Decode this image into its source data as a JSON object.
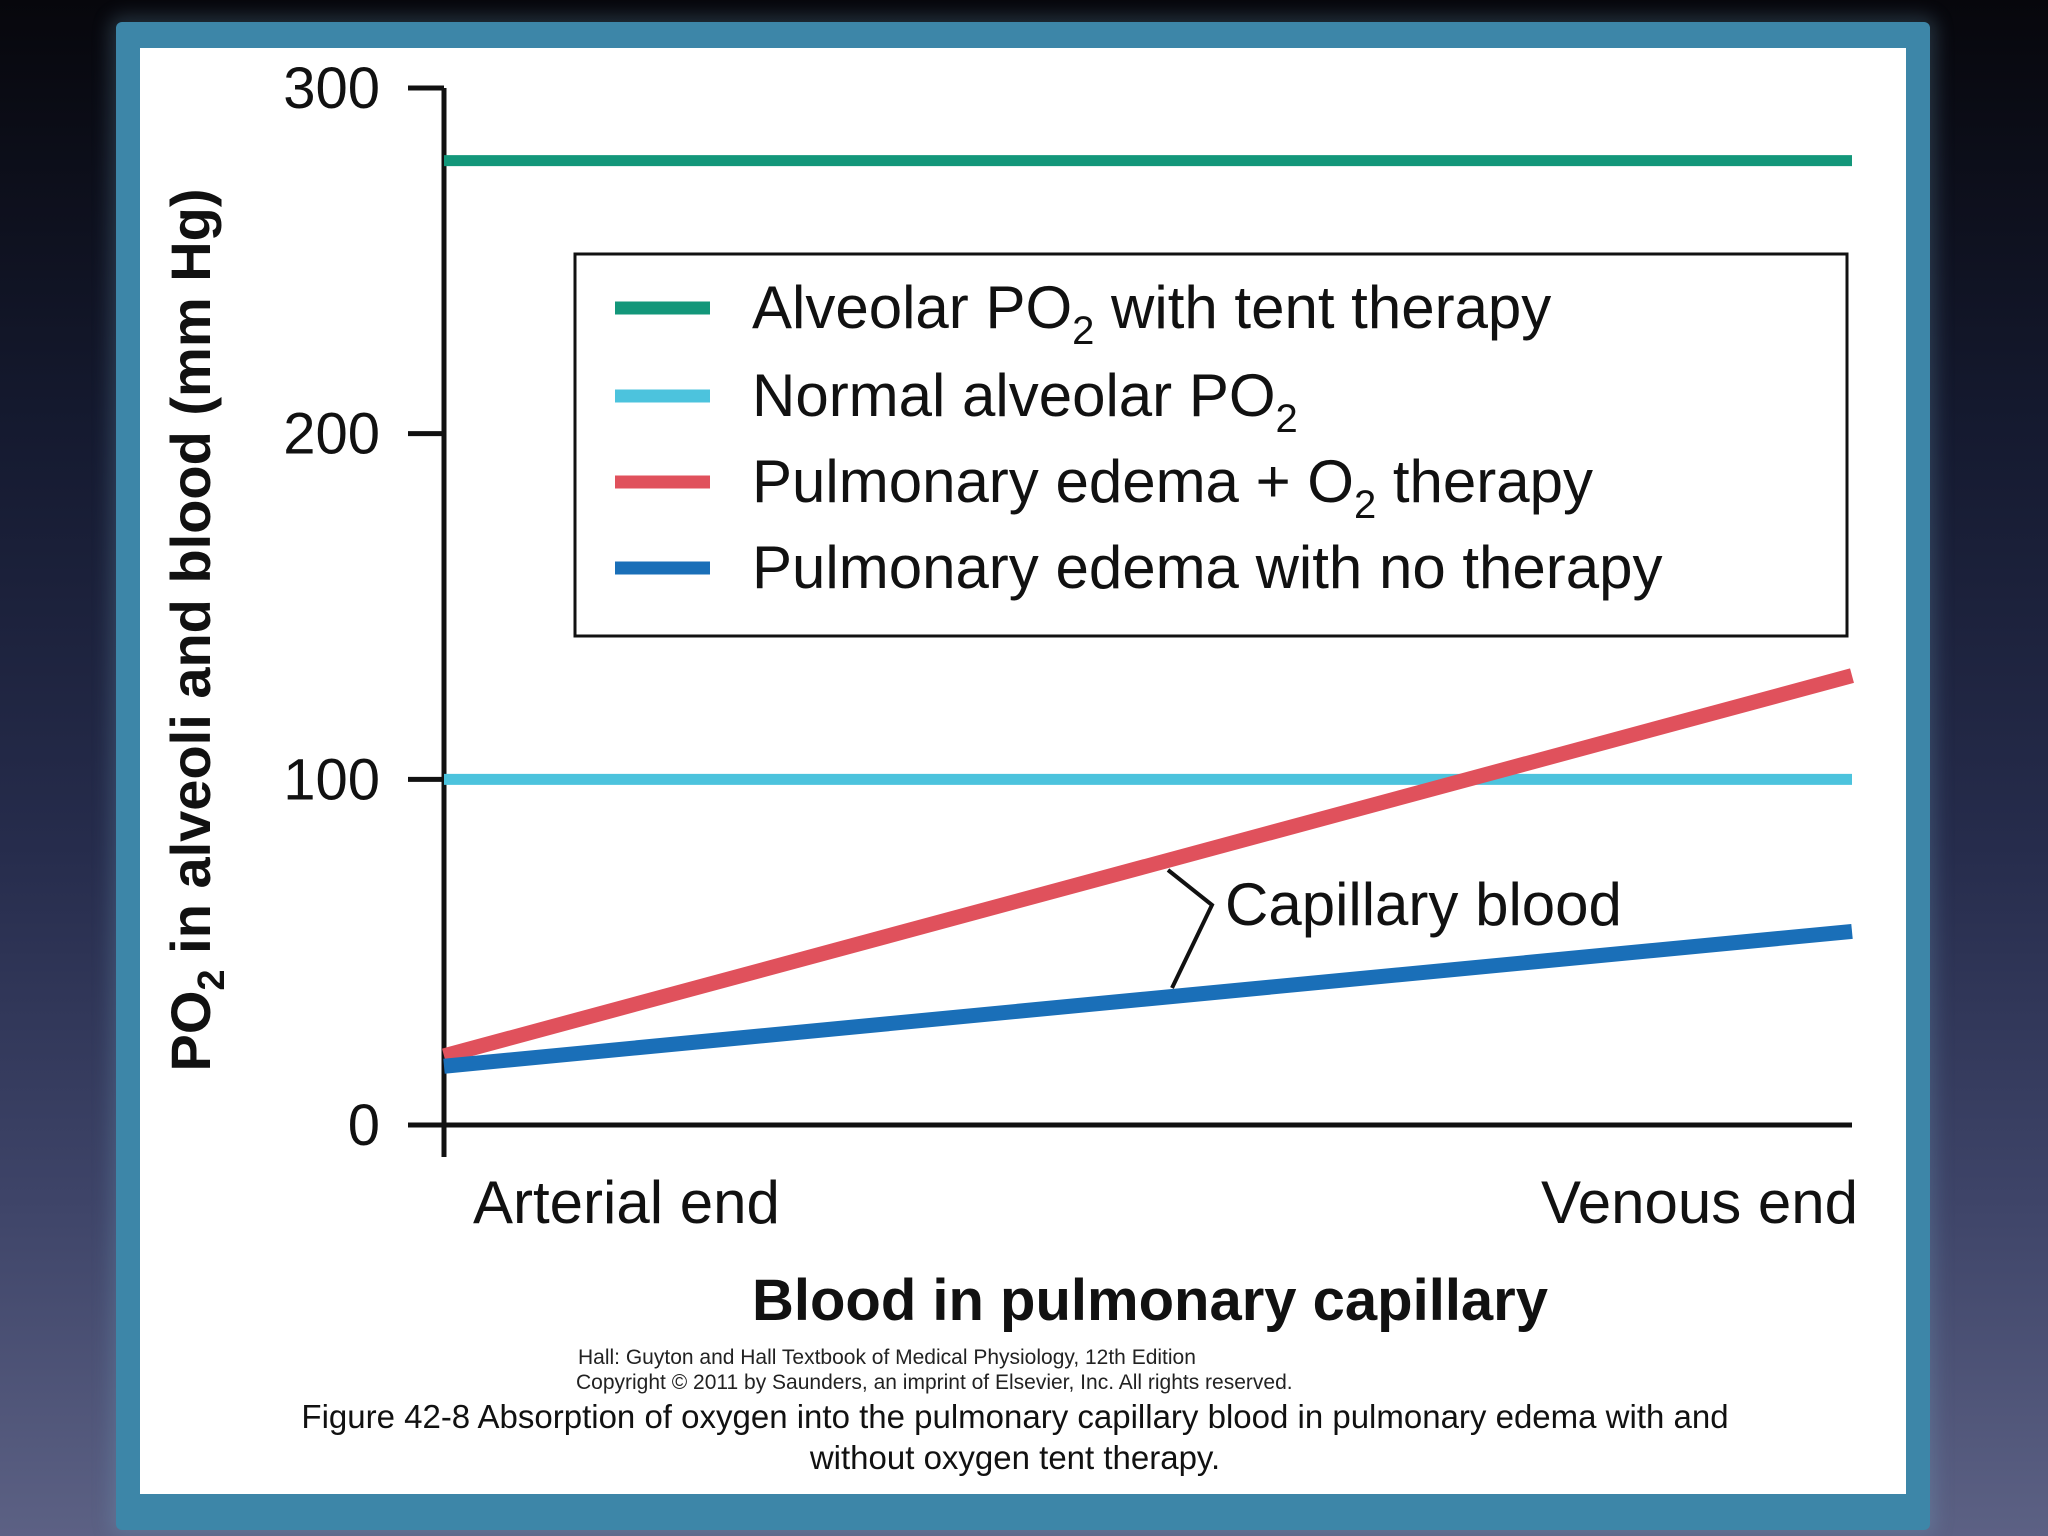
{
  "chart_data": {
    "type": "line",
    "ylabel_main": "PO",
    "ylabel_sub": "2",
    "ylabel_rest": " in alveoli and blood (mm Hg)",
    "xlabel": "Blood in pulmonary capillary",
    "x_start_label": "Arterial end",
    "x_end_label": "Venous end",
    "ylim": [
      0,
      300
    ],
    "yticks": [
      0,
      100,
      200,
      300
    ],
    "x": [
      0,
      1
    ],
    "legend_position": "upper-right",
    "series": [
      {
        "name": "Alveolar PO2 with tent therapy",
        "name_main": "Alveolar PO",
        "name_sub": "2",
        "name_rest": " with tent therapy",
        "values": [
          279,
          279
        ],
        "color": "#13977a"
      },
      {
        "name": "Normal alveolar PO2",
        "name_main": "Normal alveolar PO",
        "name_sub": "2",
        "name_rest": "",
        "values": [
          100,
          100
        ],
        "color": "#4cc3dd"
      },
      {
        "name": "Pulmonary edema + O2 therapy",
        "name_main": "Pulmonary edema +  O",
        "name_sub": "2",
        "name_rest": " therapy",
        "values": [
          20,
          130
        ],
        "color": "#e0515c"
      },
      {
        "name": "Pulmonary edema with no therapy",
        "name_main": "Pulmonary edema with no therapy",
        "name_sub": "",
        "name_rest": "",
        "values": [
          17,
          56
        ],
        "color": "#1a6fb8"
      }
    ],
    "annotation": "Capillary blood"
  },
  "credit_line1": "Hall: Guyton and Hall Textbook of Medical Physiology, 12th Edition",
  "credit_line2": "Copyright © 2011 by Saunders, an imprint of Elsevier, Inc. All rights reserved.",
  "caption_line1": "Figure 42-8 Absorption of oxygen into the pulmonary capillary blood in pulmonary edema with and",
  "caption_line2": "without oxygen tent therapy."
}
